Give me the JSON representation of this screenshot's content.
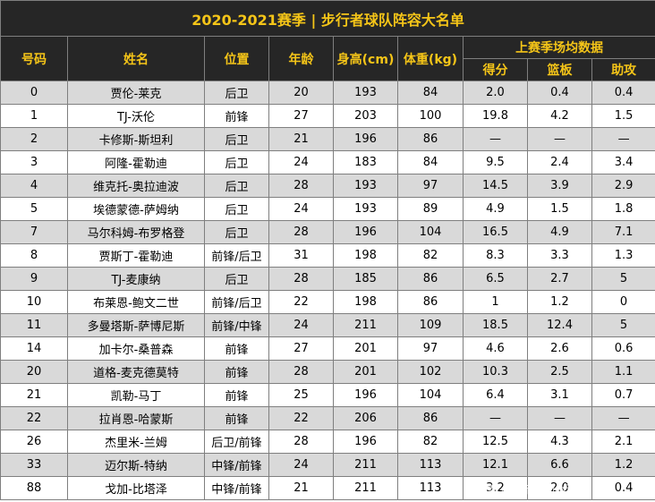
{
  "title": "2020-2021赛季 | 步行者球队阵容大名单",
  "headers": {
    "number": "号码",
    "name": "姓名",
    "position": "位置",
    "age": "年龄",
    "height": "身高(cm)",
    "weight": "体重(kg)",
    "stats_group": "上赛季场均数据",
    "points": "得分",
    "rebounds": "篮板",
    "assists": "助攻"
  },
  "rows": [
    {
      "number": "0",
      "name": "贾伦-莱克",
      "position": "后卫",
      "age": "20",
      "height": "193",
      "weight": "84",
      "points": "2.0",
      "rebounds": "0.4",
      "assists": "0.4"
    },
    {
      "number": "1",
      "name": "TJ-沃伦",
      "position": "前锋",
      "age": "27",
      "height": "203",
      "weight": "100",
      "points": "19.8",
      "rebounds": "4.2",
      "assists": "1.5"
    },
    {
      "number": "2",
      "name": "卡修斯-斯坦利",
      "position": "后卫",
      "age": "21",
      "height": "196",
      "weight": "86",
      "points": "—",
      "rebounds": "—",
      "assists": "—"
    },
    {
      "number": "3",
      "name": "阿隆-霍勒迪",
      "position": "后卫",
      "age": "24",
      "height": "183",
      "weight": "84",
      "points": "9.5",
      "rebounds": "2.4",
      "assists": "3.4"
    },
    {
      "number": "4",
      "name": "维克托-奥拉迪波",
      "position": "后卫",
      "age": "28",
      "height": "193",
      "weight": "97",
      "points": "14.5",
      "rebounds": "3.9",
      "assists": "2.9"
    },
    {
      "number": "5",
      "name": "埃德蒙德-萨姆纳",
      "position": "后卫",
      "age": "24",
      "height": "193",
      "weight": "89",
      "points": "4.9",
      "rebounds": "1.5",
      "assists": "1.8"
    },
    {
      "number": "7",
      "name": "马尔科姆-布罗格登",
      "position": "后卫",
      "age": "28",
      "height": "196",
      "weight": "104",
      "points": "16.5",
      "rebounds": "4.9",
      "assists": "7.1"
    },
    {
      "number": "8",
      "name": "贾斯丁-霍勒迪",
      "position": "前锋/后卫",
      "age": "31",
      "height": "198",
      "weight": "82",
      "points": "8.3",
      "rebounds": "3.3",
      "assists": "1.3"
    },
    {
      "number": "9",
      "name": "TJ-麦康纳",
      "position": "后卫",
      "age": "28",
      "height": "185",
      "weight": "86",
      "points": "6.5",
      "rebounds": "2.7",
      "assists": "5"
    },
    {
      "number": "10",
      "name": "布莱恩-鲍文二世",
      "position": "前锋/后卫",
      "age": "22",
      "height": "198",
      "weight": "86",
      "points": "1",
      "rebounds": "1.2",
      "assists": "0"
    },
    {
      "number": "11",
      "name": "多曼塔斯-萨博尼斯",
      "position": "前锋/中锋",
      "age": "24",
      "height": "211",
      "weight": "109",
      "points": "18.5",
      "rebounds": "12.4",
      "assists": "5"
    },
    {
      "number": "14",
      "name": "加卡尔-桑普森",
      "position": "前锋",
      "age": "27",
      "height": "201",
      "weight": "97",
      "points": "4.6",
      "rebounds": "2.6",
      "assists": "0.6"
    },
    {
      "number": "20",
      "name": "道格-麦克德莫特",
      "position": "前锋",
      "age": "28",
      "height": "201",
      "weight": "102",
      "points": "10.3",
      "rebounds": "2.5",
      "assists": "1.1"
    },
    {
      "number": "21",
      "name": "凯勒-马丁",
      "position": "前锋",
      "age": "25",
      "height": "196",
      "weight": "104",
      "points": "6.4",
      "rebounds": "3.1",
      "assists": "0.7"
    },
    {
      "number": "22",
      "name": "拉肖恩-哈蒙斯",
      "position": "前锋",
      "age": "22",
      "height": "206",
      "weight": "86",
      "points": "—",
      "rebounds": "—",
      "assists": "—"
    },
    {
      "number": "26",
      "name": "杰里米-兰姆",
      "position": "后卫/前锋",
      "age": "28",
      "height": "196",
      "weight": "82",
      "points": "12.5",
      "rebounds": "4.3",
      "assists": "2.1"
    },
    {
      "number": "33",
      "name": "迈尔斯-特纳",
      "position": "中锋/前锋",
      "age": "24",
      "height": "211",
      "weight": "113",
      "points": "12.1",
      "rebounds": "6.6",
      "assists": "1.2"
    },
    {
      "number": "88",
      "name": "戈加-比塔泽",
      "position": "中锋/前锋",
      "age": "21",
      "height": "211",
      "weight": "113",
      "points": "3.2",
      "rebounds": "2.0",
      "assists": "0.4"
    }
  ],
  "watermark": "头条 @三节球场小记",
  "colors": {
    "header_bg": "#262626",
    "header_text": "#f5c518",
    "alt_row": "#d9d9d9"
  }
}
